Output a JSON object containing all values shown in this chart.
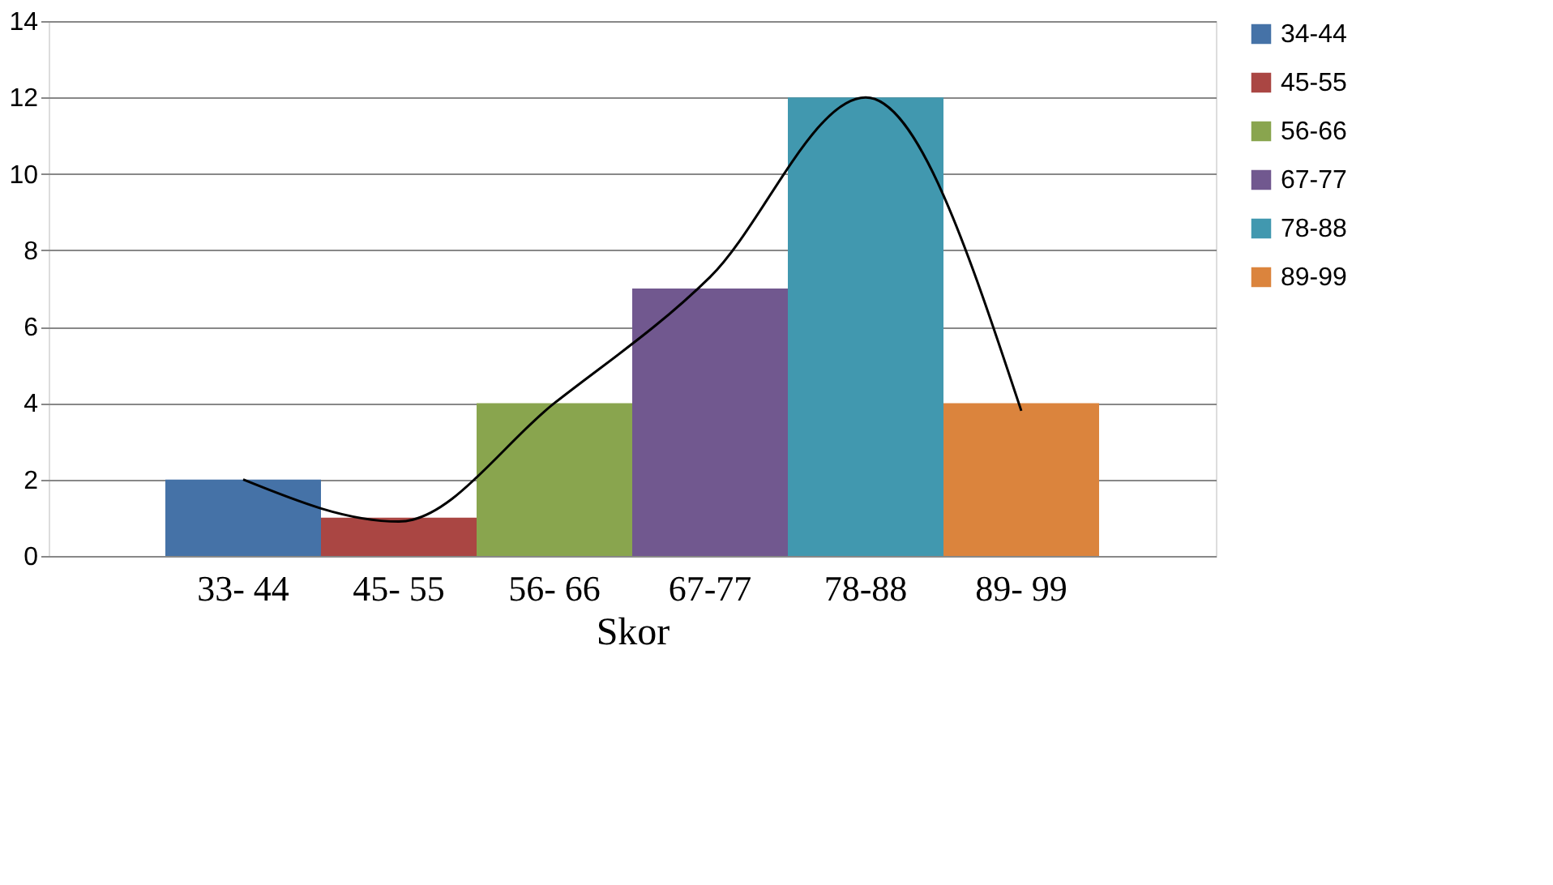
{
  "chart_data": {
    "type": "bar",
    "xlabel": "Skor",
    "categories": [
      "33- 44",
      "45- 55",
      "56- 66",
      "67-77",
      "78-88",
      "89- 99"
    ],
    "series": [
      {
        "name": "34-44",
        "color": "#4572a7",
        "values": [
          2,
          null,
          null,
          null,
          null,
          null
        ]
      },
      {
        "name": "45-55",
        "color": "#aa4643",
        "values": [
          null,
          1,
          null,
          null,
          null,
          null
        ]
      },
      {
        "name": "56-66",
        "color": "#89a54e",
        "values": [
          null,
          null,
          4,
          null,
          null,
          null
        ]
      },
      {
        "name": "67-77",
        "color": "#71588f",
        "values": [
          null,
          null,
          null,
          7,
          null,
          null
        ]
      },
      {
        "name": "78-88",
        "color": "#4198af",
        "values": [
          null,
          null,
          null,
          null,
          12,
          null
        ]
      },
      {
        "name": "89-99",
        "color": "#db843d",
        "values": [
          null,
          null,
          null,
          null,
          null,
          4
        ]
      },
      {
        "type": "line",
        "color": "#000000",
        "values": [
          2,
          0.9,
          4,
          7.3,
          12,
          3.8
        ]
      }
    ],
    "ylim": [
      0,
      14
    ],
    "yticks": [
      0,
      2,
      4,
      6,
      8,
      10,
      12,
      14
    ],
    "grid": "y",
    "legend": "right",
    "marker": "none"
  }
}
